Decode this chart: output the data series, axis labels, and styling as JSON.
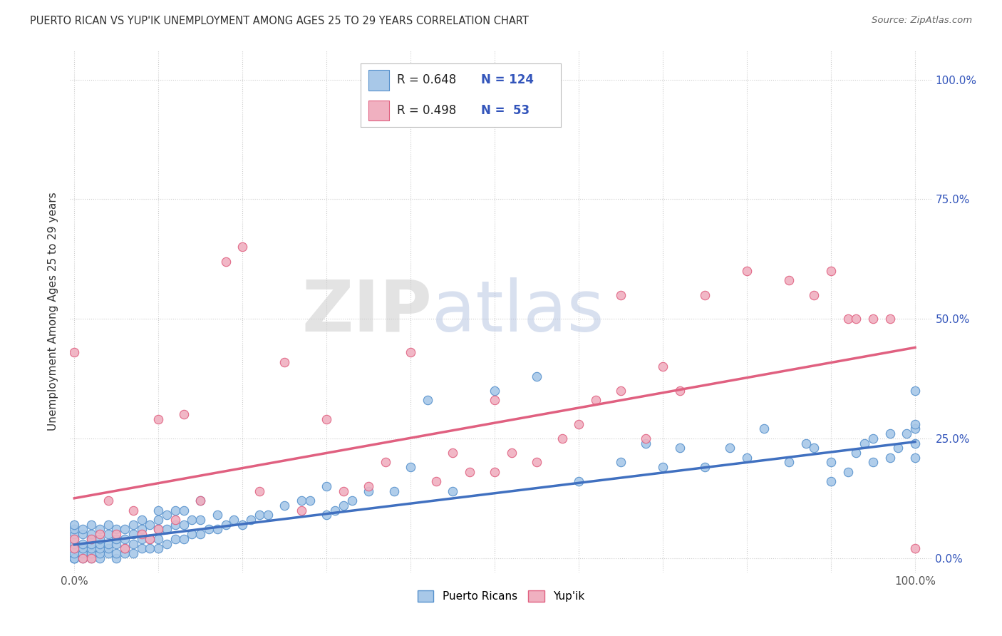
{
  "title": "PUERTO RICAN VS YUP'IK UNEMPLOYMENT AMONG AGES 25 TO 29 YEARS CORRELATION CHART",
  "source": "Source: ZipAtlas.com",
  "ylabel": "Unemployment Among Ages 25 to 29 years",
  "blue_color": "#a8c8e8",
  "blue_edge_color": "#5590cc",
  "pink_color": "#f0b0c0",
  "pink_edge_color": "#e06080",
  "blue_line_color": "#4070c0",
  "pink_line_color": "#e06080",
  "r_blue": 0.648,
  "n_blue": 124,
  "r_pink": 0.498,
  "n_pink": 53,
  "legend_label_blue": "Puerto Ricans",
  "legend_label_pink": "Yup'ik",
  "blue_slope": 0.215,
  "blue_intercept": 0.028,
  "pink_slope": 0.315,
  "pink_intercept": 0.125,
  "xlim": [
    0.0,
    1.0
  ],
  "ylim": [
    0.0,
    1.0
  ],
  "blue_points_x": [
    0.0,
    0.0,
    0.0,
    0.0,
    0.0,
    0.0,
    0.0,
    0.0,
    0.0,
    0.0,
    0.0,
    0.01,
    0.01,
    0.01,
    0.01,
    0.01,
    0.01,
    0.02,
    0.02,
    0.02,
    0.02,
    0.02,
    0.02,
    0.02,
    0.02,
    0.03,
    0.03,
    0.03,
    0.03,
    0.03,
    0.03,
    0.04,
    0.04,
    0.04,
    0.04,
    0.04,
    0.05,
    0.05,
    0.05,
    0.05,
    0.05,
    0.06,
    0.06,
    0.06,
    0.06,
    0.07,
    0.07,
    0.07,
    0.07,
    0.08,
    0.08,
    0.08,
    0.08,
    0.09,
    0.09,
    0.09,
    0.1,
    0.1,
    0.1,
    0.1,
    0.1,
    0.11,
    0.11,
    0.11,
    0.12,
    0.12,
    0.12,
    0.13,
    0.13,
    0.13,
    0.14,
    0.14,
    0.15,
    0.15,
    0.15,
    0.16,
    0.17,
    0.17,
    0.18,
    0.19,
    0.2,
    0.21,
    0.22,
    0.23,
    0.25,
    0.27,
    0.28,
    0.3,
    0.3,
    0.31,
    0.32,
    0.33,
    0.35,
    0.38,
    0.4,
    0.42,
    0.45,
    0.5,
    0.55,
    0.6,
    0.65,
    0.68,
    0.7,
    0.72,
    0.75,
    0.78,
    0.8,
    0.82,
    0.85,
    0.87,
    0.88,
    0.9,
    0.9,
    0.92,
    0.93,
    0.94,
    0.95,
    0.95,
    0.97,
    0.97,
    0.98,
    0.99,
    1.0,
    1.0,
    1.0,
    1.0,
    1.0
  ],
  "blue_points_y": [
    0.0,
    0.0,
    0.0,
    0.0,
    0.01,
    0.02,
    0.03,
    0.04,
    0.05,
    0.06,
    0.07,
    0.0,
    0.01,
    0.02,
    0.03,
    0.05,
    0.06,
    0.0,
    0.01,
    0.01,
    0.02,
    0.03,
    0.04,
    0.05,
    0.07,
    0.0,
    0.01,
    0.02,
    0.03,
    0.04,
    0.06,
    0.01,
    0.02,
    0.03,
    0.05,
    0.07,
    0.0,
    0.01,
    0.03,
    0.04,
    0.06,
    0.01,
    0.02,
    0.04,
    0.06,
    0.01,
    0.03,
    0.05,
    0.07,
    0.02,
    0.04,
    0.06,
    0.08,
    0.02,
    0.04,
    0.07,
    0.02,
    0.04,
    0.06,
    0.08,
    0.1,
    0.03,
    0.06,
    0.09,
    0.04,
    0.07,
    0.1,
    0.04,
    0.07,
    0.1,
    0.05,
    0.08,
    0.05,
    0.08,
    0.12,
    0.06,
    0.06,
    0.09,
    0.07,
    0.08,
    0.07,
    0.08,
    0.09,
    0.09,
    0.11,
    0.12,
    0.12,
    0.09,
    0.15,
    0.1,
    0.11,
    0.12,
    0.14,
    0.14,
    0.19,
    0.33,
    0.14,
    0.35,
    0.38,
    0.16,
    0.2,
    0.24,
    0.19,
    0.23,
    0.19,
    0.23,
    0.21,
    0.27,
    0.2,
    0.24,
    0.23,
    0.16,
    0.2,
    0.18,
    0.22,
    0.24,
    0.2,
    0.25,
    0.21,
    0.26,
    0.23,
    0.26,
    0.21,
    0.24,
    0.27,
    0.28,
    0.35
  ],
  "pink_points_x": [
    0.0,
    0.0,
    0.0,
    0.01,
    0.02,
    0.02,
    0.03,
    0.04,
    0.05,
    0.06,
    0.07,
    0.08,
    0.09,
    0.1,
    0.1,
    0.12,
    0.13,
    0.15,
    0.18,
    0.2,
    0.22,
    0.25,
    0.27,
    0.3,
    0.32,
    0.35,
    0.37,
    0.4,
    0.43,
    0.45,
    0.47,
    0.5,
    0.5,
    0.52,
    0.55,
    0.58,
    0.6,
    0.62,
    0.65,
    0.65,
    0.68,
    0.7,
    0.72,
    0.75,
    0.8,
    0.85,
    0.88,
    0.9,
    0.92,
    0.93,
    0.95,
    0.97,
    1.0
  ],
  "pink_points_y": [
    0.02,
    0.04,
    0.43,
    0.0,
    0.0,
    0.04,
    0.05,
    0.12,
    0.05,
    0.02,
    0.1,
    0.05,
    0.04,
    0.06,
    0.29,
    0.08,
    0.3,
    0.12,
    0.62,
    0.65,
    0.14,
    0.41,
    0.1,
    0.29,
    0.14,
    0.15,
    0.2,
    0.43,
    0.16,
    0.22,
    0.18,
    0.18,
    0.33,
    0.22,
    0.2,
    0.25,
    0.28,
    0.33,
    0.35,
    0.55,
    0.25,
    0.4,
    0.35,
    0.55,
    0.6,
    0.58,
    0.55,
    0.6,
    0.5,
    0.5,
    0.5,
    0.5,
    0.02
  ]
}
